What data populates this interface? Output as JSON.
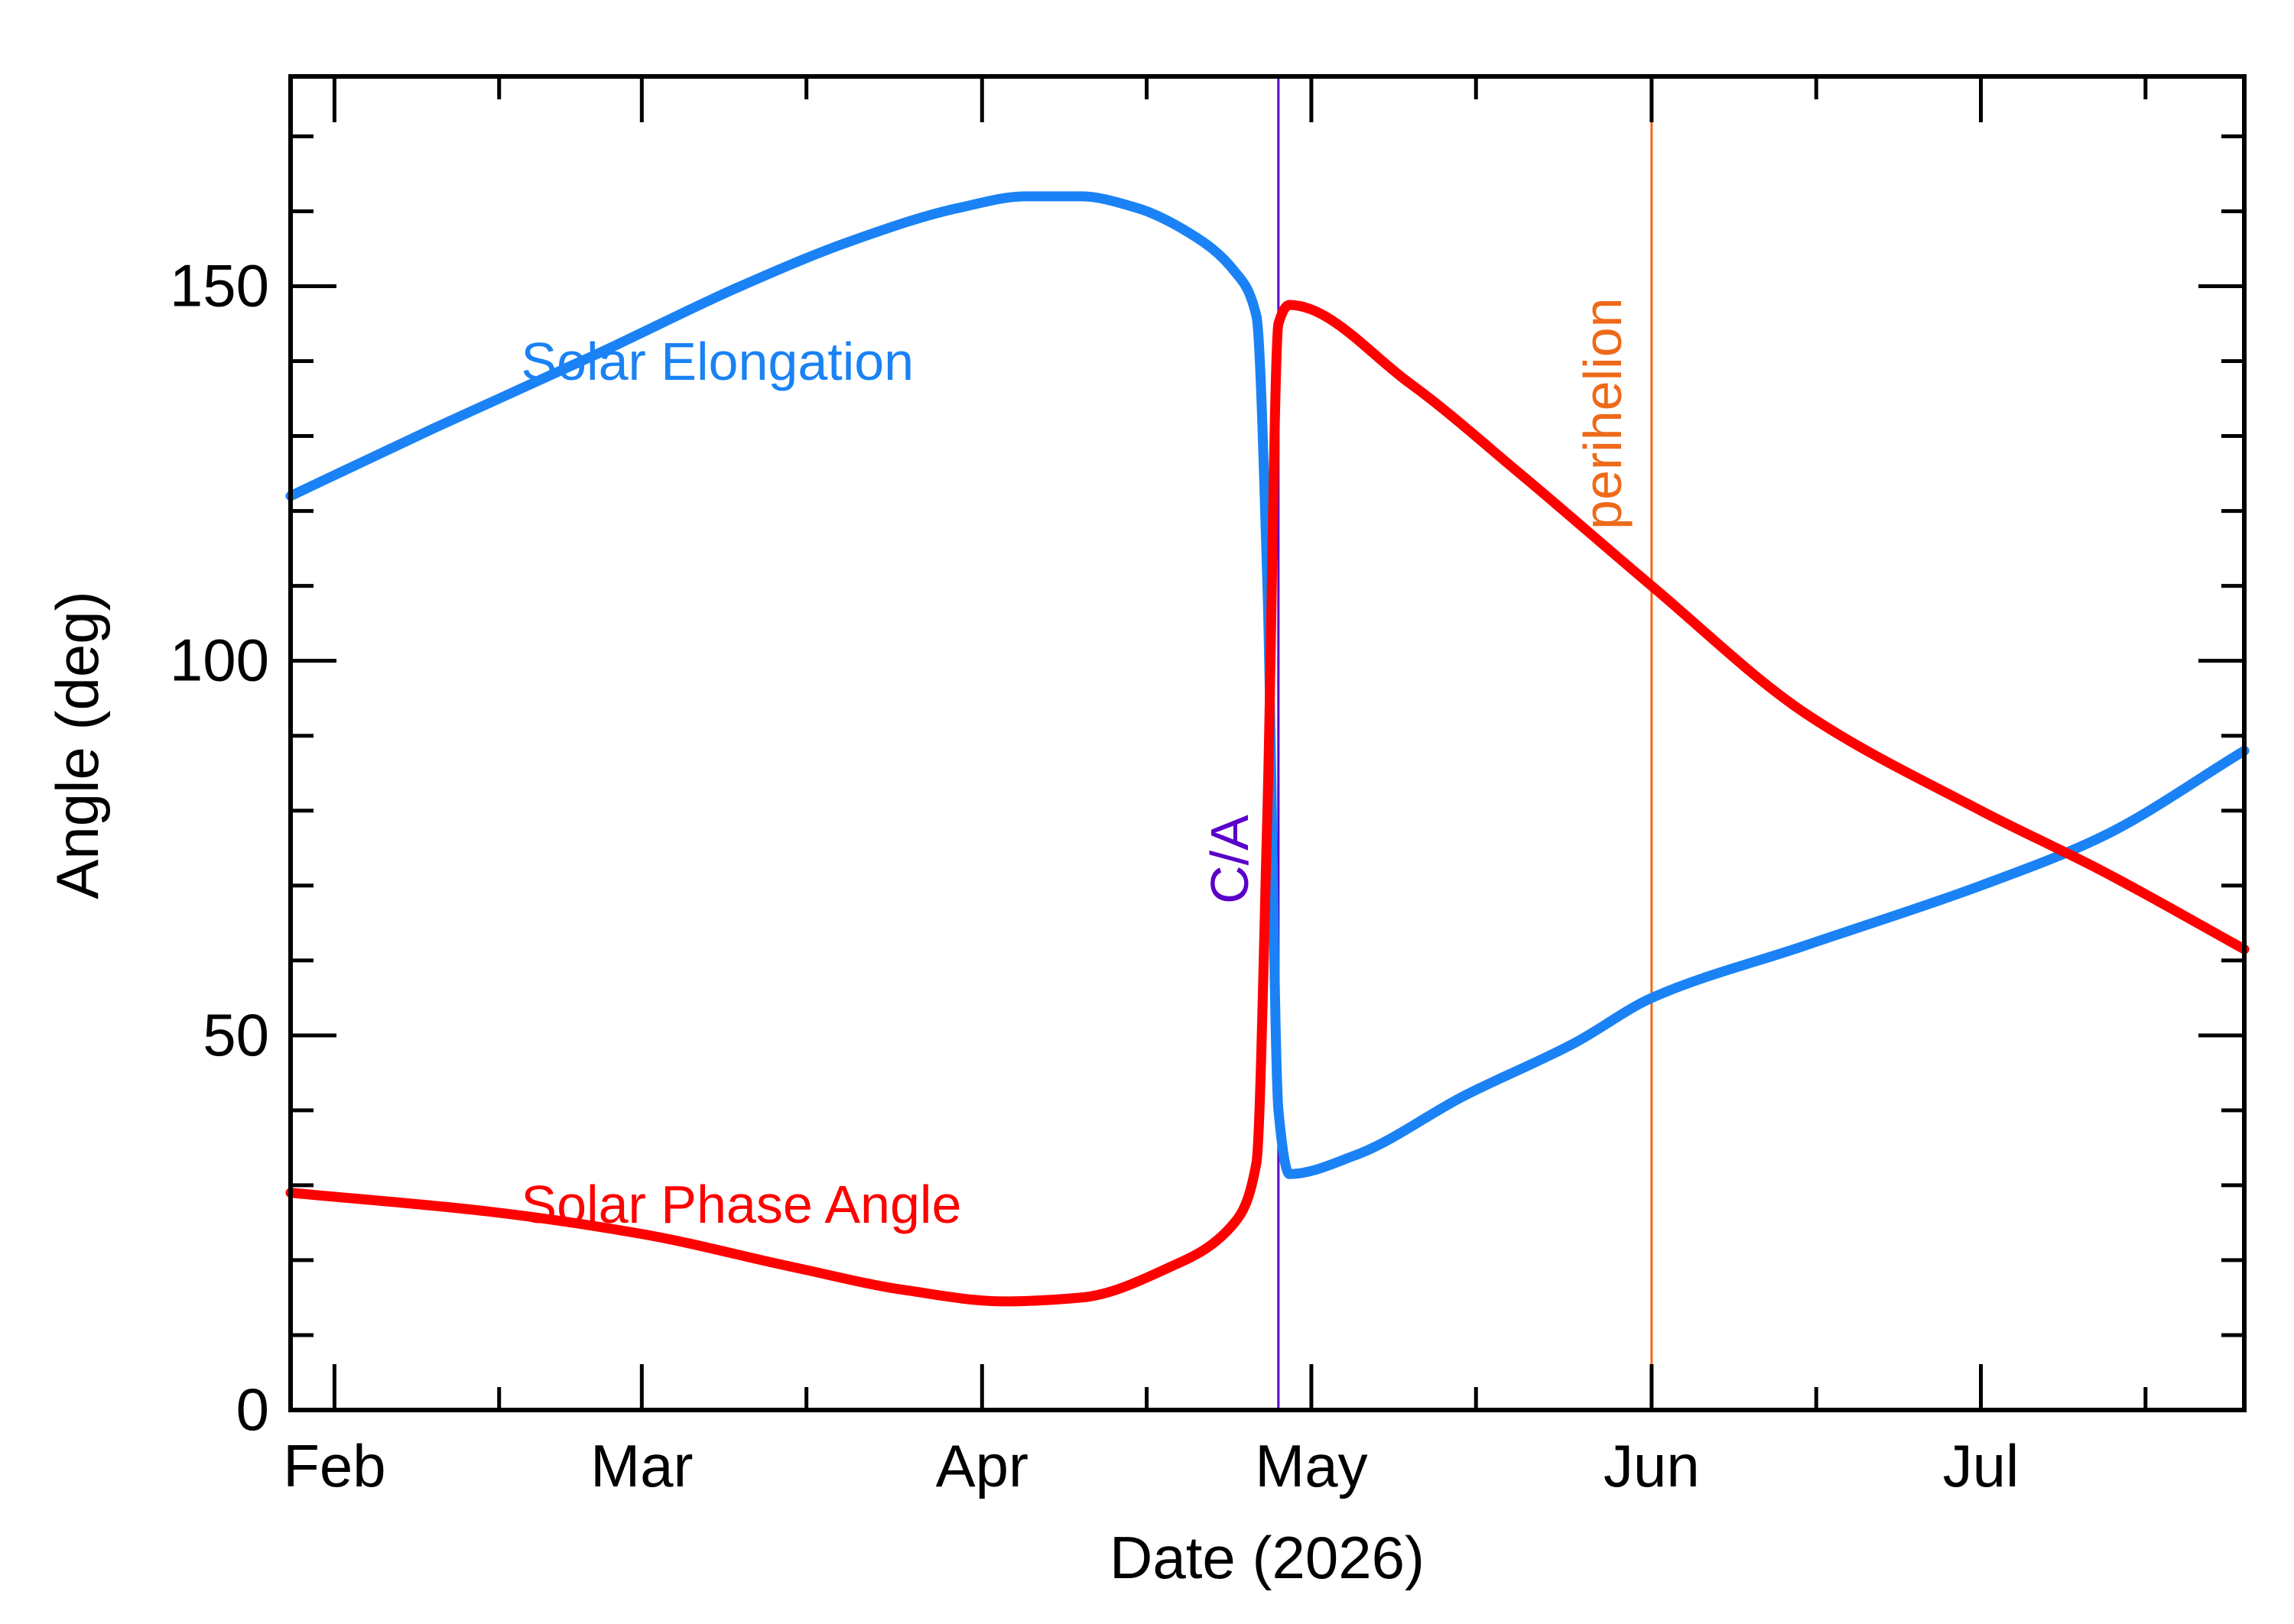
{
  "chart_data": {
    "type": "line",
    "xlabel": "Date (2026)",
    "ylabel": "Angle (deg)",
    "ylim": [
      0,
      178
    ],
    "xlim": [
      "2026-01-28",
      "2026-07-25"
    ],
    "grid": false,
    "x_ticks": [
      {
        "date": "2026-02-01",
        "label": "Feb"
      },
      {
        "date": "2026-03-01",
        "label": "Mar"
      },
      {
        "date": "2026-04-01",
        "label": "Apr"
      },
      {
        "date": "2026-05-01",
        "label": "May"
      },
      {
        "date": "2026-06-01",
        "label": "Jun"
      },
      {
        "date": "2026-07-01",
        "label": "Jul"
      }
    ],
    "y_ticks": [
      {
        "value": 0,
        "label": "0"
      },
      {
        "value": 50,
        "label": "50"
      },
      {
        "value": 100,
        "label": "100"
      },
      {
        "value": 150,
        "label": "150"
      }
    ],
    "series": [
      {
        "name": "Solar Elongation",
        "color": "#1a82f5",
        "points": [
          [
            "2026-01-28",
            122
          ],
          [
            "2026-02-10",
            131
          ],
          [
            "2026-02-25",
            141
          ],
          [
            "2026-03-10",
            150
          ],
          [
            "2026-03-20",
            156
          ],
          [
            "2026-03-30",
            160.5
          ],
          [
            "2026-04-05",
            162
          ],
          [
            "2026-04-10",
            162
          ],
          [
            "2026-04-15",
            160.5
          ],
          [
            "2026-04-20",
            157
          ],
          [
            "2026-04-24",
            152
          ],
          [
            "2026-04-26",
            146
          ],
          [
            "2026-04-27",
            110
          ],
          [
            "2026-04-28",
            40
          ],
          [
            "2026-04-29",
            31.5
          ],
          [
            "2026-05-05",
            34
          ],
          [
            "2026-05-15",
            42
          ],
          [
            "2026-05-25",
            49
          ],
          [
            "2026-06-01",
            55
          ],
          [
            "2026-06-15",
            62
          ],
          [
            "2026-07-01",
            70
          ],
          [
            "2026-07-12",
            76.5
          ],
          [
            "2026-07-25",
            88
          ]
        ]
      },
      {
        "name": "Solar Phase Angle",
        "color": "#ff0000",
        "points": [
          [
            "2026-01-28",
            29
          ],
          [
            "2026-02-15",
            26.5
          ],
          [
            "2026-03-01",
            23.5
          ],
          [
            "2026-03-15",
            19
          ],
          [
            "2026-03-25",
            16
          ],
          [
            "2026-04-03",
            14.5
          ],
          [
            "2026-04-10",
            15
          ],
          [
            "2026-04-18",
            19
          ],
          [
            "2026-04-24",
            25
          ],
          [
            "2026-04-26",
            33
          ],
          [
            "2026-04-27",
            80
          ],
          [
            "2026-04-28",
            145
          ],
          [
            "2026-04-29",
            147.5
          ],
          [
            "2026-05-10",
            137
          ],
          [
            "2026-05-20",
            125
          ],
          [
            "2026-06-01",
            110
          ],
          [
            "2026-06-15",
            93
          ],
          [
            "2026-07-01",
            80
          ],
          [
            "2026-07-12",
            72
          ],
          [
            "2026-07-25",
            61.5
          ]
        ]
      }
    ],
    "markers": [
      {
        "label": "C/A",
        "date": "2026-04-28",
        "color": "#5a00c8"
      },
      {
        "label": "perihelion",
        "date": "2026-06-01",
        "color": "#ee6a1a"
      }
    ]
  }
}
